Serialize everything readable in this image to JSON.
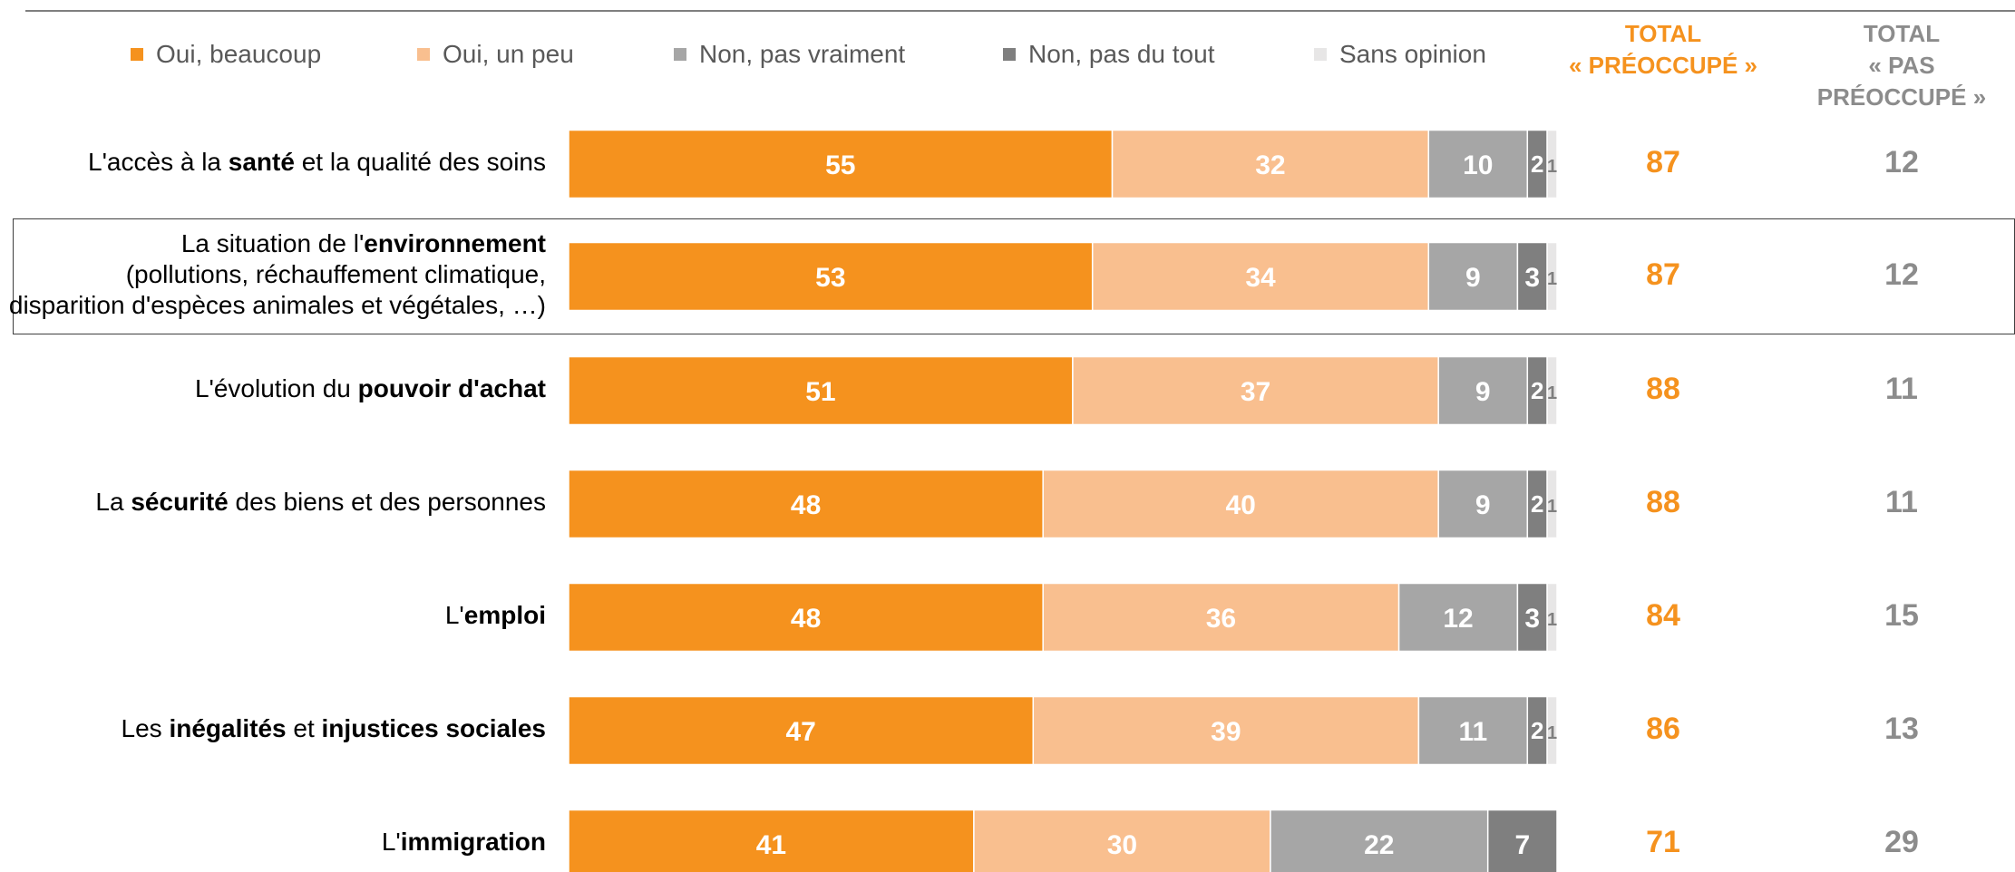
{
  "chart_data": {
    "type": "bar",
    "orientation": "horizontal",
    "stacked": true,
    "xlim": [
      0,
      100
    ],
    "legend": {
      "placement": "top",
      "items": [
        {
          "label": "Oui, beaucoup",
          "color": "#f5921e"
        },
        {
          "label": "Oui, un peu",
          "color": "#f9bf8f"
        },
        {
          "label": "Non, pas vraiment",
          "color": "#a6a6a6"
        },
        {
          "label": "Non, pas du tout",
          "color": "#7f7f7f"
        },
        {
          "label": "Sans opinion",
          "color": "#e7e6e6"
        }
      ]
    },
    "totals_headers": {
      "preoccupe_line1": "TOTAL",
      "preoccupe_line2": "« PRÉOCCUPÉ »",
      "pas_preoccupe_line1": "TOTAL",
      "pas_preoccupe_line2": "« PAS PRÉOCCUPÉ »"
    },
    "rows": [
      {
        "label": [
          {
            "t": "L'accès à la ",
            "b": false
          },
          {
            "t": "santé",
            "b": true
          },
          {
            "t": " et la qualité des soins",
            "b": false
          }
        ],
        "values": [
          55,
          32,
          10,
          2,
          1
        ],
        "total_preoccupe": 87,
        "total_pas_preoccupe": 12
      },
      {
        "label": [
          {
            "t": "La situation de l'",
            "b": false
          },
          {
            "t": "environnement",
            "b": true
          }
        ],
        "sublabel": [
          "(pollutions, réchauffement climatique,",
          "disparition d'espèces animales et végétales, …)"
        ],
        "values": [
          53,
          34,
          9,
          3,
          1
        ],
        "total_preoccupe": 87,
        "total_pas_preoccupe": 12,
        "highlighted": true
      },
      {
        "label": [
          {
            "t": "L'évolution du ",
            "b": false
          },
          {
            "t": "pouvoir d'achat",
            "b": true
          }
        ],
        "values": [
          51,
          37,
          9,
          2,
          1
        ],
        "total_preoccupe": 88,
        "total_pas_preoccupe": 11
      },
      {
        "label": [
          {
            "t": "La ",
            "b": false
          },
          {
            "t": "sécurité",
            "b": true
          },
          {
            "t": " des biens et des personnes",
            "b": false
          }
        ],
        "values": [
          48,
          40,
          9,
          2,
          1
        ],
        "total_preoccupe": 88,
        "total_pas_preoccupe": 11
      },
      {
        "label": [
          {
            "t": "L'",
            "b": false
          },
          {
            "t": "emploi",
            "b": true
          }
        ],
        "values": [
          48,
          36,
          12,
          3,
          1
        ],
        "total_preoccupe": 84,
        "total_pas_preoccupe": 15
      },
      {
        "label": [
          {
            "t": "Les ",
            "b": false
          },
          {
            "t": "inégalités",
            "b": true
          },
          {
            "t": " et ",
            "b": false
          },
          {
            "t": "injustices sociales",
            "b": true
          }
        ],
        "values": [
          47,
          39,
          11,
          2,
          1
        ],
        "total_preoccupe": 86,
        "total_pas_preoccupe": 13
      },
      {
        "label": [
          {
            "t": "L'",
            "b": false
          },
          {
            "t": "immigration",
            "b": true
          }
        ],
        "values": [
          41,
          30,
          22,
          7,
          0
        ],
        "total_preoccupe": 71,
        "total_pas_preoccupe": 29
      }
    ]
  }
}
